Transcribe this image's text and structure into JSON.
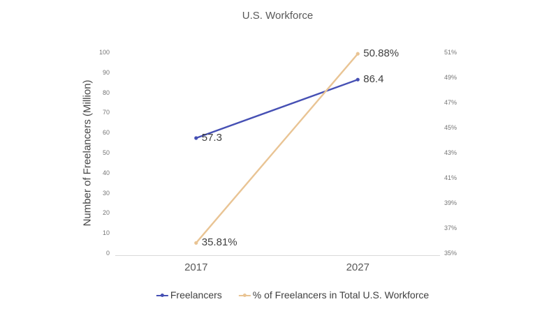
{
  "title": "U.S. Workforce",
  "chart_data": {
    "type": "line",
    "title": "U.S. Workforce",
    "categories": [
      "2017",
      "2027"
    ],
    "series": [
      {
        "name": "Freelancers",
        "axis": "left",
        "values": [
          57.3,
          86.4
        ],
        "point_labels": [
          "57.3",
          "86.4"
        ],
        "color": "#4650b4"
      },
      {
        "name": "% of Freelancers in Total U.S. Workforce",
        "axis": "right",
        "values": [
          35.81,
          50.88
        ],
        "point_labels": [
          "35.81%",
          "50.88%"
        ],
        "color": "#e9c494"
      }
    ],
    "left_axis": {
      "label": "Number of Freelancers (Million)",
      "min": 0,
      "max": 100,
      "ticks": [
        "0",
        "10",
        "20",
        "30",
        "40",
        "50",
        "60",
        "70",
        "80",
        "90",
        "100"
      ]
    },
    "right_axis": {
      "min": 35,
      "max": 51,
      "ticks": [
        "35%",
        "37%",
        "39%",
        "41%",
        "43%",
        "45%",
        "47%",
        "49%",
        "51%"
      ]
    },
    "grid": false,
    "legend_position": "bottom",
    "axis_line_color": "#d9d9d9"
  }
}
